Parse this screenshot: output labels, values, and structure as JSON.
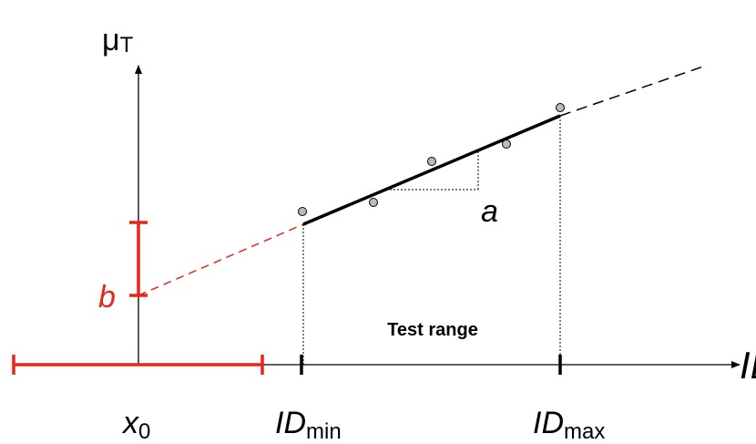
{
  "labels": {
    "y_axis": {
      "main": "μ",
      "sub": "T"
    },
    "x_axis": "ID",
    "x0": {
      "main": "x",
      "sub": "0"
    },
    "id_min": {
      "main": "ID",
      "sub": "min"
    },
    "id_max": {
      "main": "ID",
      "sub": "max"
    },
    "slope": "a",
    "intercept": "b",
    "test_range": "Test range"
  }
}
